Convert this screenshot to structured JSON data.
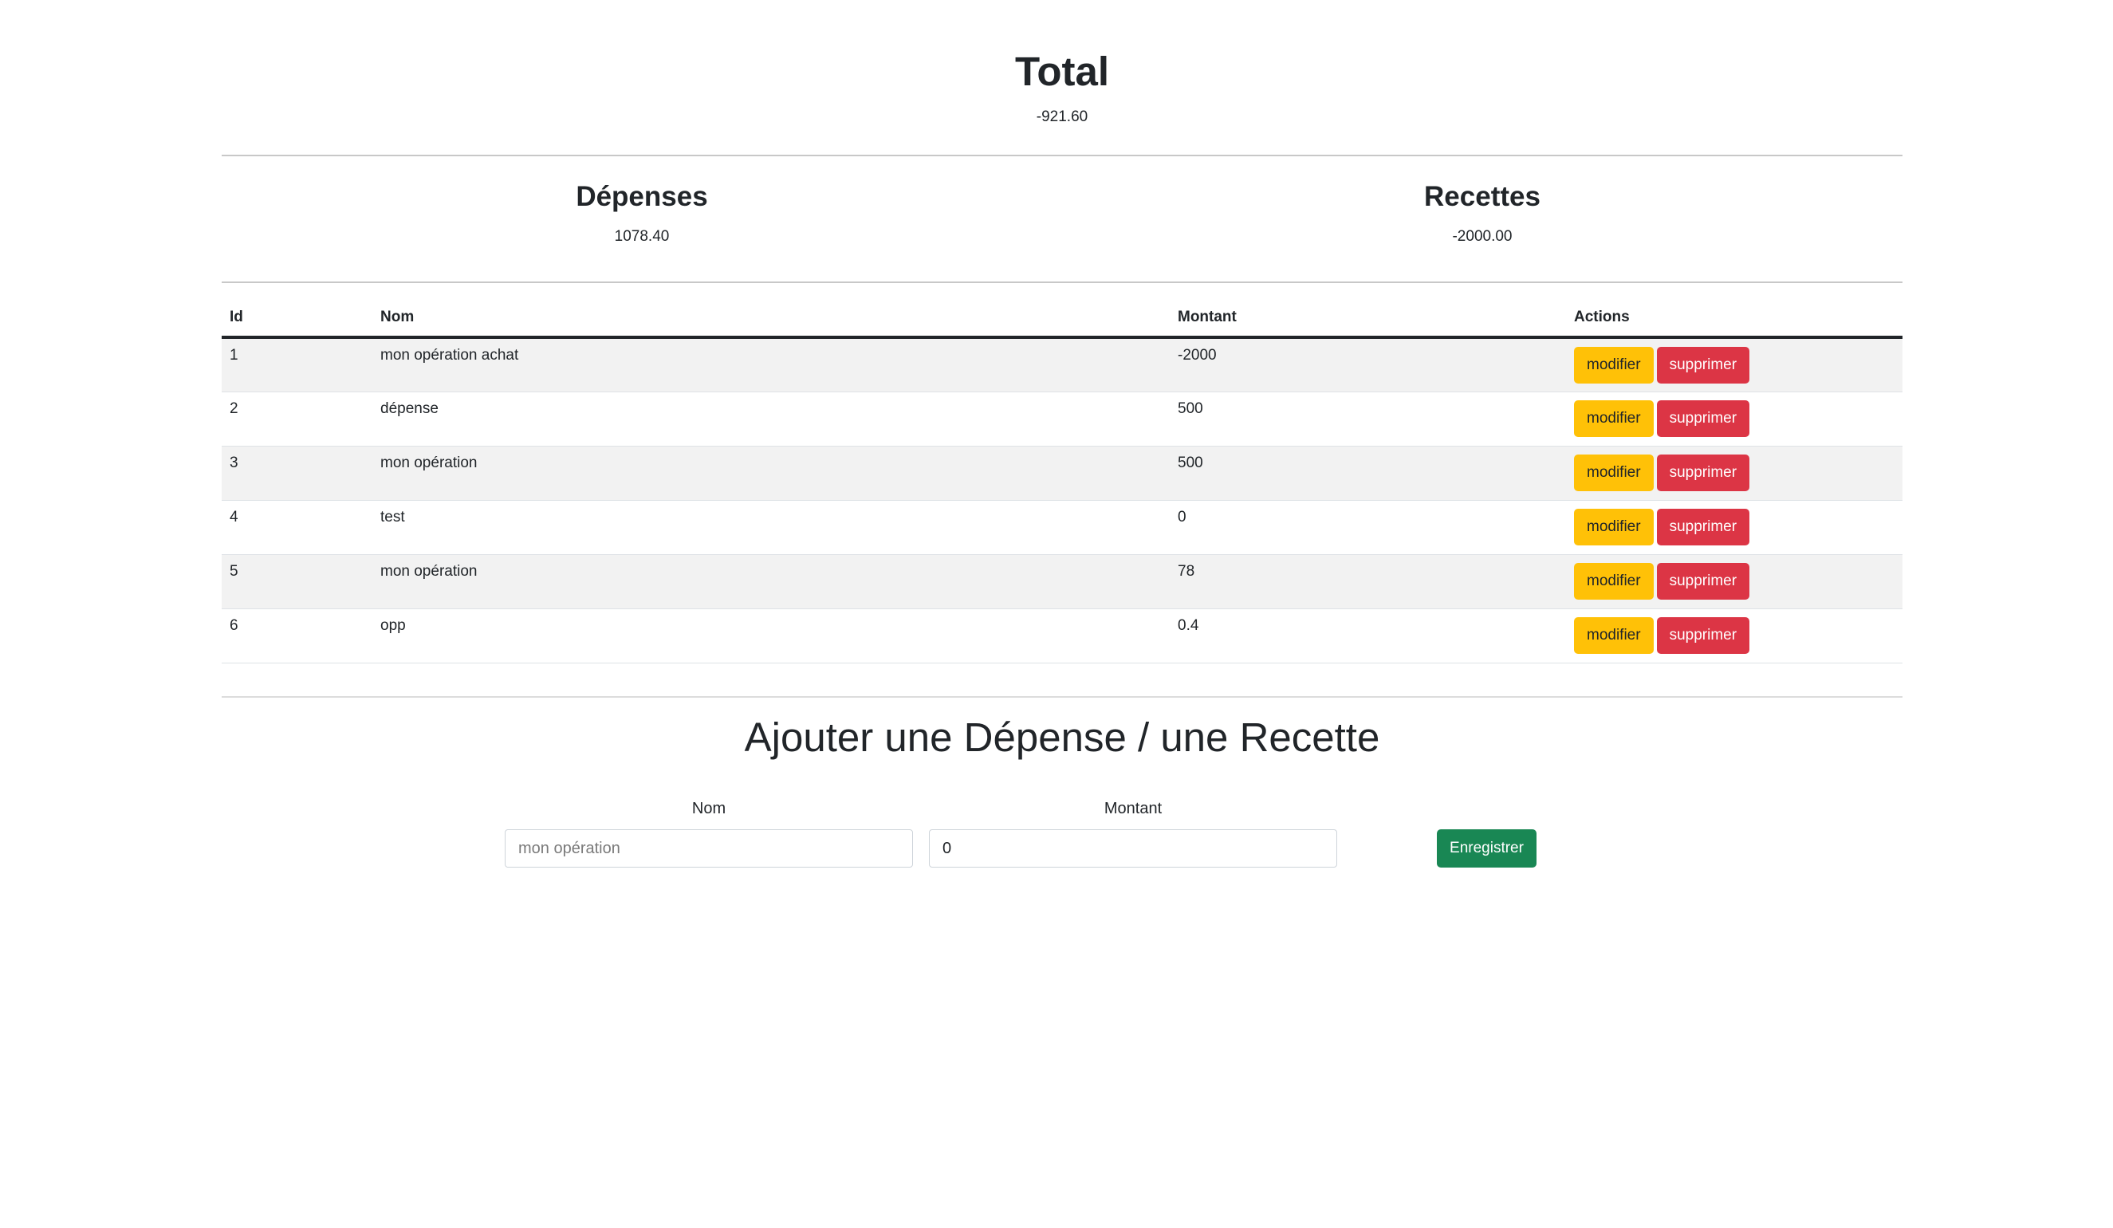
{
  "total": {
    "title": "Total",
    "value": "-921.60"
  },
  "depenses": {
    "title": "Dépenses",
    "value": "1078.40"
  },
  "recettes": {
    "title": "Recettes",
    "value": "-2000.00"
  },
  "table": {
    "headers": {
      "id": "Id",
      "nom": "Nom",
      "montant": "Montant",
      "actions": "Actions"
    },
    "rows": [
      {
        "id": "1",
        "nom": "mon opération achat",
        "montant": "-2000",
        "edit": "modifier",
        "delete": "supprimer"
      },
      {
        "id": "2",
        "nom": "dépense",
        "montant": "500",
        "edit": "modifier",
        "delete": "supprimer"
      },
      {
        "id": "3",
        "nom": "mon opération",
        "montant": "500",
        "edit": "modifier",
        "delete": "supprimer"
      },
      {
        "id": "4",
        "nom": "test",
        "montant": "0",
        "edit": "modifier",
        "delete": "supprimer"
      },
      {
        "id": "5",
        "nom": "mon opération",
        "montant": "78",
        "edit": "modifier",
        "delete": "supprimer"
      },
      {
        "id": "6",
        "nom": "opp",
        "montant": "0.4",
        "edit": "modifier",
        "delete": "supprimer"
      }
    ]
  },
  "form": {
    "title": "Ajouter une Dépense / une Recette",
    "nom_label": "Nom",
    "nom_placeholder": "mon opération",
    "montant_label": "Montant",
    "montant_value": "0",
    "submit_label": "Enregistrer"
  },
  "colors": {
    "warning": "#ffc107",
    "danger": "#dc3545",
    "success": "#198754"
  }
}
